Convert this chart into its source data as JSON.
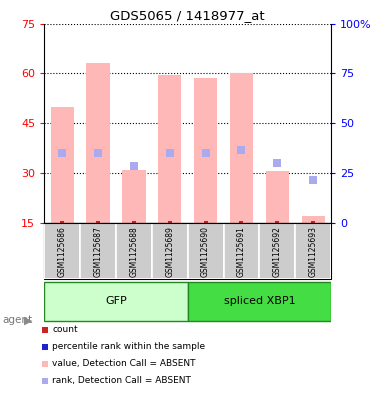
{
  "title": "GDS5065 / 1418977_at",
  "samples": [
    "GSM1125686",
    "GSM1125687",
    "GSM1125688",
    "GSM1125689",
    "GSM1125690",
    "GSM1125691",
    "GSM1125692",
    "GSM1125693"
  ],
  "bar_values": [
    50,
    63,
    31,
    59.5,
    58.5,
    60,
    30.5,
    17
  ],
  "bar_bottom": 15,
  "rank_dots": [
    36,
    36,
    32,
    36,
    36,
    37,
    33,
    28
  ],
  "bar_color_absent": "#ffb8b8",
  "bar_color_count": "#cc2222",
  "rank_color_absent": "#aaaaee",
  "ylim_left": [
    15,
    75
  ],
  "ylim_right": [
    0,
    100
  ],
  "yticks_left": [
    15,
    30,
    45,
    60,
    75
  ],
  "ytick_labels_left": [
    "15",
    "30",
    "45",
    "60",
    "75"
  ],
  "ytick_labels_right": [
    "0",
    "25",
    "50",
    "75",
    "100%"
  ],
  "group_gfp_label": "GFP",
  "group_xbp1_label": "spliced XBP1",
  "gfp_color_light": "#ccffcc",
  "gfp_color_dark": "#44dd44",
  "gfp_border": "#228822",
  "agent_label": "agent",
  "legend_items": [
    {
      "label": "count",
      "color": "#cc2222"
    },
    {
      "label": "percentile rank within the sample",
      "color": "#2222cc"
    },
    {
      "label": "value, Detection Call = ABSENT",
      "color": "#ffb8b8"
    },
    {
      "label": "rank, Detection Call = ABSENT",
      "color": "#aaaaee"
    }
  ],
  "fig_width": 3.85,
  "fig_height": 3.93,
  "dpi": 100
}
